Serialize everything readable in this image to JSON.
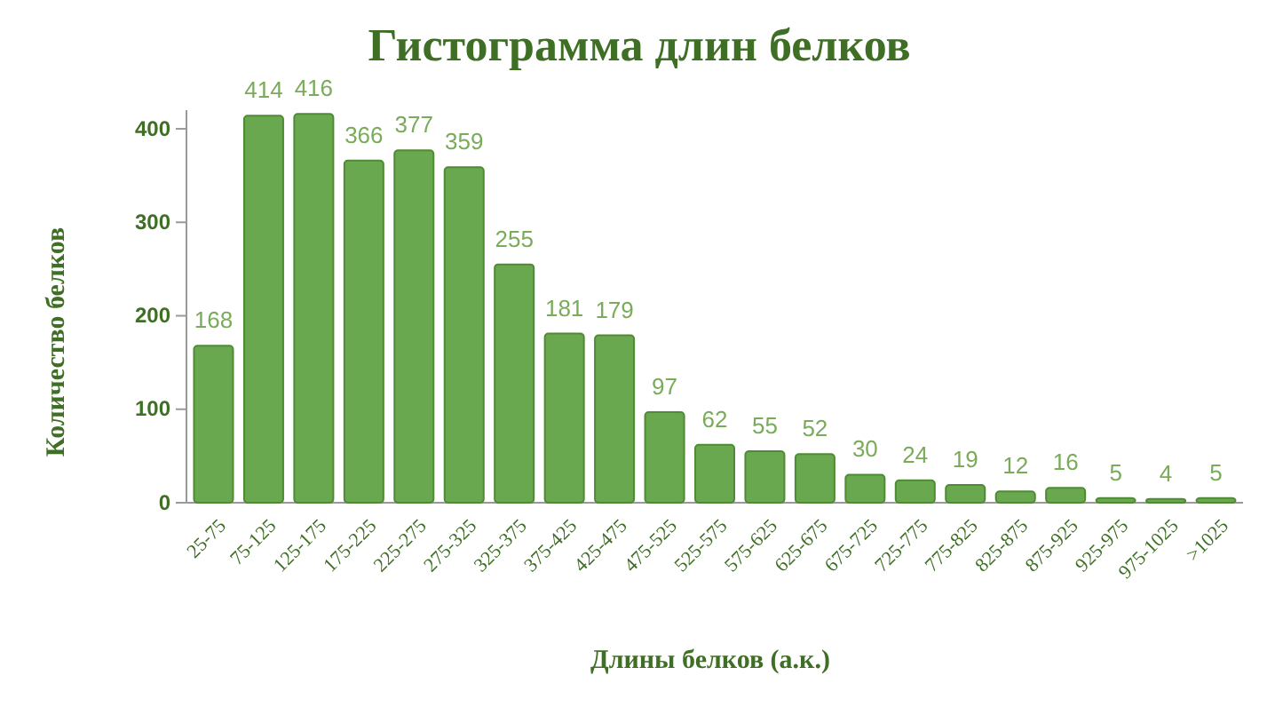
{
  "chart_data": {
    "type": "bar",
    "title": "Гистограмма длин белков",
    "xlabel": "Длины белков (а.к.)",
    "ylabel": "Количество белков",
    "categories": [
      "25-75",
      "75-125",
      "125-175",
      "175-225",
      "225-275",
      "275-325",
      "325-375",
      "375-425",
      "425-475",
      "475-525",
      "525-575",
      "575-625",
      "625-675",
      "675-725",
      "725-775",
      "775-825",
      "825-875",
      "875-925",
      "925-975",
      "975-1025",
      ">1025"
    ],
    "values": [
      168,
      414,
      416,
      366,
      377,
      359,
      255,
      181,
      179,
      97,
      62,
      55,
      52,
      30,
      24,
      19,
      12,
      16,
      5,
      4,
      5
    ],
    "color": "#6aa84f",
    "ylim": [
      0,
      420
    ],
    "yticks": [
      0,
      100,
      200,
      300,
      400
    ],
    "grid": false,
    "data_labels": true
  }
}
